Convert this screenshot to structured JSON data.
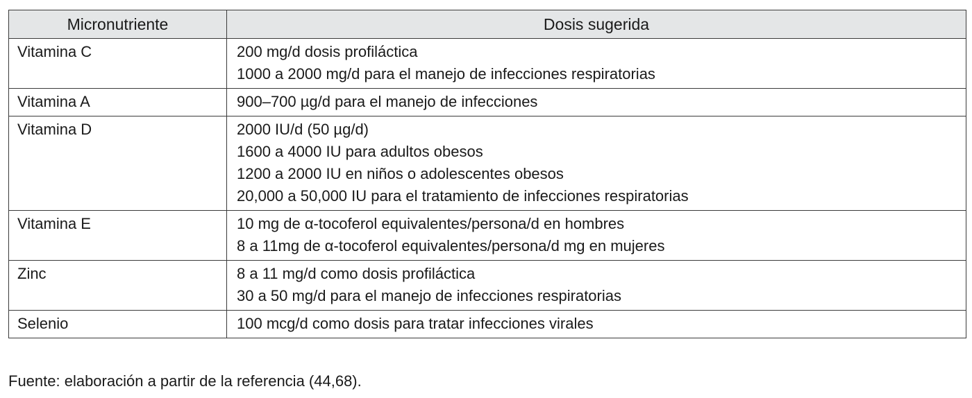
{
  "table": {
    "headers": [
      "Micronutriente",
      "Dosis sugerida"
    ],
    "rows": [
      {
        "micronutrient": "Vitamina C",
        "doses": [
          "200 mg/d dosis profiláctica",
          "1000 a 2000 mg/d para el manejo de infecciones respiratorias"
        ]
      },
      {
        "micronutrient": "Vitamina A",
        "doses": [
          "900–700 µg/d para el manejo de infecciones"
        ]
      },
      {
        "micronutrient": "Vitamina D",
        "doses": [
          "2000 IU/d (50 µg/d)",
          "1600 a 4000 IU para adultos obesos",
          "1200 a 2000 IU en niños o adolescentes obesos",
          "20,000 a 50,000 IU para el tratamiento de infecciones respiratorias"
        ]
      },
      {
        "micronutrient": "Vitamina E",
        "doses": [
          "10 mg de α-tocoferol equivalentes/persona/d en hombres",
          "8 a 11mg de α-tocoferol equivalentes/persona/d mg en mujeres"
        ]
      },
      {
        "micronutrient": "Zinc",
        "doses": [
          "8 a 11 mg/d como dosis profiláctica",
          "30 a 50 mg/d para el manejo de infecciones respiratorias"
        ]
      },
      {
        "micronutrient": "Selenio",
        "doses": [
          "100 mcg/d como dosis para tratar infecciones virales"
        ]
      }
    ]
  },
  "source_note": "Fuente: elaboración a partir de la referencia (44,68).",
  "colors": {
    "header_background": "#e4e6e7",
    "border": "#3a3a3a",
    "text": "#1a1a1a"
  }
}
